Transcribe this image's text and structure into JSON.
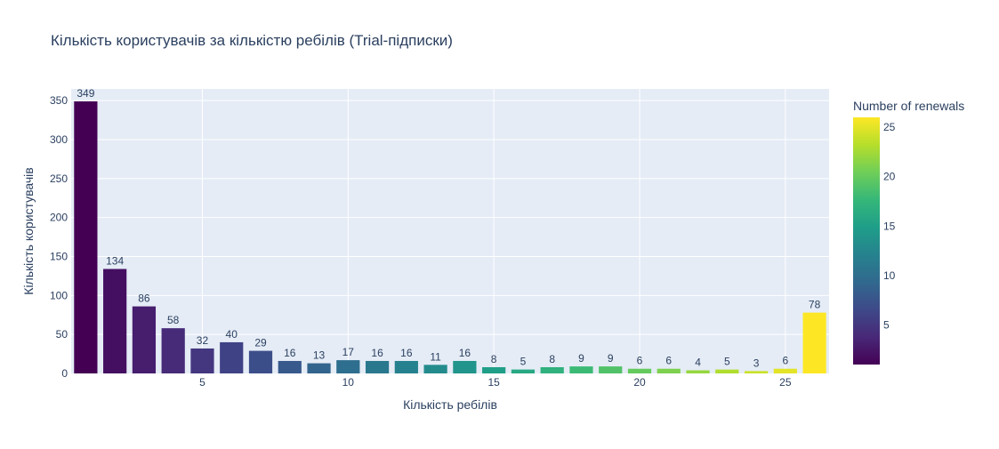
{
  "chart_data": {
    "type": "bar",
    "title": "Кількість користувачів за кількістю ребілів (Trial-підписки)",
    "xlabel": "Кількість ребілів",
    "ylabel": "Кількість користувачів",
    "x": [
      1,
      2,
      3,
      4,
      5,
      6,
      7,
      8,
      9,
      10,
      11,
      12,
      13,
      14,
      15,
      16,
      17,
      18,
      19,
      20,
      21,
      22,
      23,
      24,
      25,
      26
    ],
    "values": [
      349,
      134,
      86,
      58,
      32,
      40,
      29,
      16,
      13,
      17,
      16,
      16,
      11,
      16,
      8,
      5,
      8,
      9,
      9,
      6,
      6,
      4,
      5,
      3,
      6,
      78
    ],
    "data_labels": [
      "349",
      "134",
      "86",
      "58",
      "32",
      "40",
      "29",
      "16",
      "13",
      "17",
      "16",
      "16",
      "11",
      "16",
      "8",
      "5",
      "8",
      "9",
      "9",
      "6",
      "6",
      "4",
      "5",
      "3",
      "6",
      "78"
    ],
    "xlim": [
      0.5,
      26.5
    ],
    "ylim": [
      0,
      365
    ],
    "x_ticks": [
      5,
      10,
      15,
      20,
      25
    ],
    "x_tick_labels": [
      "5",
      "10",
      "15",
      "20",
      "25"
    ],
    "y_ticks": [
      0,
      50,
      100,
      150,
      200,
      250,
      300,
      350
    ],
    "y_tick_labels": [
      "0",
      "50",
      "100",
      "150",
      "200",
      "250",
      "300",
      "350"
    ],
    "grid": true,
    "plot_background": "#e5ecf6",
    "colorbar": {
      "title": "Number of renewals",
      "colorscale": "Viridis",
      "range": [
        1,
        26
      ],
      "ticks": [
        5,
        10,
        15,
        20,
        25
      ],
      "tick_labels": [
        "5",
        "10",
        "15",
        "20",
        "25"
      ],
      "placement": "right"
    }
  }
}
